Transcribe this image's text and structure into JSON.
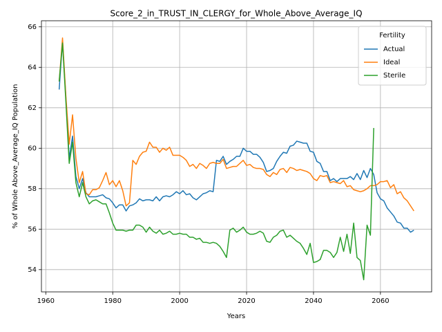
{
  "chart_data": {
    "type": "line",
    "title": "Score_2_in_TRUST_IN_CLERGY_for_Whole_Above_Average_IQ",
    "xlabel": "Years",
    "ylabel": "% of Whole Above_Average_IQ Population",
    "x": [
      1964,
      1965,
      1966,
      1967,
      1968,
      1969,
      1970,
      1971,
      1972,
      1973,
      1974,
      1975,
      1976,
      1977,
      1978,
      1979,
      1980,
      1981,
      1982,
      1983,
      1984,
      1985,
      1986,
      1987,
      1988,
      1989,
      1990,
      1991,
      1992,
      1993,
      1994,
      1995,
      1996,
      1997,
      1998,
      1999,
      2000,
      2001,
      2002,
      2003,
      2004,
      2005,
      2006,
      2007,
      2008,
      2009,
      2010,
      2011,
      2012,
      2013,
      2014,
      2015,
      2016,
      2017,
      2018,
      2019,
      2020,
      2021,
      2022,
      2023,
      2024,
      2025,
      2026,
      2027,
      2028,
      2029,
      2030,
      2031,
      2032,
      2033,
      2034,
      2035,
      2036,
      2037,
      2038,
      2039,
      2040,
      2041,
      2042,
      2043,
      2044,
      2045,
      2046,
      2047,
      2048,
      2049,
      2050,
      2051,
      2052,
      2053,
      2054,
      2055,
      2056,
      2057,
      2058,
      2059,
      2060,
      2061,
      2062,
      2063,
      2064,
      2065,
      2066,
      2067,
      2068,
      2069,
      2070
    ],
    "series": [
      {
        "name": "Actual",
        "color": "#1f77b4",
        "values": [
          62.9,
          65.3,
          62.5,
          59.5,
          60.6,
          58.6,
          58.0,
          58.5,
          57.8,
          57.6,
          57.6,
          57.6,
          57.65,
          57.7,
          57.55,
          57.5,
          57.3,
          57.05,
          57.2,
          57.2,
          56.9,
          57.15,
          57.2,
          57.3,
          57.5,
          57.4,
          57.45,
          57.45,
          57.4,
          57.6,
          57.4,
          57.6,
          57.65,
          57.6,
          57.7,
          57.85,
          57.75,
          57.9,
          57.7,
          57.75,
          57.55,
          57.45,
          57.6,
          57.75,
          57.8,
          57.9,
          57.85,
          59.4,
          59.35,
          59.6,
          59.2,
          59.35,
          59.45,
          59.6,
          59.6,
          60.0,
          59.85,
          59.85,
          59.7,
          59.7,
          59.55,
          59.3,
          58.85,
          58.9,
          59.0,
          59.35,
          59.6,
          59.8,
          59.75,
          60.1,
          60.15,
          60.35,
          60.3,
          60.25,
          60.25,
          59.85,
          59.8,
          59.35,
          59.25,
          58.85,
          58.85,
          58.4,
          58.5,
          58.35,
          58.5,
          58.5,
          58.5,
          58.6,
          58.45,
          58.75,
          58.45,
          58.9,
          58.55,
          59.0,
          58.7,
          57.8,
          57.5,
          57.4,
          57.05,
          56.85,
          56.65,
          56.35,
          56.3,
          56.05,
          56.05,
          55.85,
          55.95
        ]
      },
      {
        "name": "Ideal",
        "color": "#ff7f0e",
        "values": [
          63.3,
          65.45,
          62.6,
          60.2,
          61.65,
          59.5,
          58.3,
          58.85,
          57.75,
          57.7,
          57.95,
          57.95,
          58.05,
          58.4,
          58.8,
          58.2,
          58.4,
          58.1,
          58.4,
          57.9,
          57.15,
          57.3,
          59.4,
          59.2,
          59.6,
          59.8,
          59.85,
          60.3,
          60.05,
          60.05,
          59.8,
          60.0,
          59.9,
          60.05,
          59.65,
          59.65,
          59.65,
          59.55,
          59.4,
          59.1,
          59.2,
          59.0,
          59.25,
          59.15,
          59.0,
          59.25,
          59.3,
          59.25,
          59.25,
          59.45,
          59.0,
          59.05,
          59.1,
          59.1,
          59.25,
          59.4,
          59.15,
          59.2,
          59.05,
          59.0,
          59.0,
          58.95,
          58.7,
          58.6,
          58.8,
          58.7,
          58.95,
          59.0,
          58.8,
          59.05,
          59.0,
          58.9,
          58.95,
          58.9,
          58.85,
          58.75,
          58.5,
          58.4,
          58.65,
          58.6,
          58.65,
          58.3,
          58.35,
          58.3,
          58.25,
          58.4,
          58.1,
          58.15,
          57.95,
          57.9,
          57.85,
          57.9,
          58.0,
          58.15,
          58.15,
          58.2,
          58.35,
          58.35,
          58.4,
          58.05,
          58.2,
          57.75,
          57.85,
          57.55,
          57.4,
          57.15,
          56.9
        ]
      },
      {
        "name": "Sterile",
        "color": "#2ca02c",
        "values": [
          63.3,
          65.2,
          62.3,
          59.25,
          60.3,
          58.3,
          57.6,
          58.3,
          57.6,
          57.25,
          57.4,
          57.45,
          57.35,
          57.25,
          57.25,
          56.8,
          56.3,
          55.95,
          55.95,
          55.95,
          55.9,
          55.95,
          55.95,
          56.2,
          56.2,
          56.1,
          55.85,
          56.1,
          55.9,
          55.8,
          55.95,
          55.75,
          55.8,
          55.9,
          55.75,
          55.75,
          55.8,
          55.75,
          55.75,
          55.6,
          55.6,
          55.5,
          55.55,
          55.35,
          55.35,
          55.3,
          55.35,
          55.3,
          55.15,
          54.9,
          54.6,
          55.95,
          56.05,
          55.85,
          55.95,
          56.1,
          55.85,
          55.75,
          55.75,
          55.8,
          55.9,
          55.8,
          55.4,
          55.35,
          55.6,
          55.7,
          55.9,
          55.95,
          55.6,
          55.7,
          55.55,
          55.4,
          55.3,
          55.05,
          54.75,
          55.3,
          54.35,
          54.4,
          54.5,
          54.95,
          54.95,
          54.85,
          54.6,
          54.85,
          55.6,
          54.9,
          55.75,
          54.8,
          56.3,
          54.6,
          54.45,
          53.5,
          56.2,
          55.7,
          61.0,
          null,
          null,
          null,
          null,
          null,
          null,
          null,
          null,
          null,
          null,
          null,
          null
        ]
      }
    ],
    "xlim": [
      1958.7,
      2075.3
    ],
    "ylim": [
      52.9,
      66.3
    ],
    "xticks": [
      1960,
      1980,
      2000,
      2020,
      2040,
      2060
    ],
    "yticks": [
      54,
      56,
      58,
      60,
      62,
      64,
      66
    ],
    "grid": true,
    "legend": {
      "title": "Fertility",
      "loc": "upper right"
    }
  }
}
